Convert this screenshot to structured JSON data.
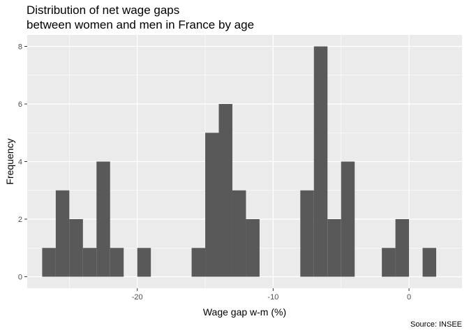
{
  "chart_data": {
    "type": "histogram",
    "title": [
      "Distribution of net wage gaps",
      "between women and men in France by age"
    ],
    "xlabel": "Wage gap w-m (%)",
    "ylabel": "Frequency",
    "caption": "Source: INSEE",
    "xlim": [
      -28.1,
      3.9
    ],
    "ylim": [
      -0.4,
      8.4
    ],
    "x_ticks": [
      -20,
      -10,
      0
    ],
    "y_ticks": [
      0,
      2,
      4,
      6,
      8
    ],
    "bin_width": 1,
    "bins": [
      {
        "x0": -27,
        "x1": -26,
        "count": 1
      },
      {
        "x0": -26,
        "x1": -25,
        "count": 3
      },
      {
        "x0": -25,
        "x1": -24,
        "count": 2
      },
      {
        "x0": -24,
        "x1": -23,
        "count": 1
      },
      {
        "x0": -23,
        "x1": -22,
        "count": 4
      },
      {
        "x0": -22,
        "x1": -21,
        "count": 1
      },
      {
        "x0": -20,
        "x1": -19,
        "count": 1
      },
      {
        "x0": -16,
        "x1": -15,
        "count": 1
      },
      {
        "x0": -15,
        "x1": -14,
        "count": 5
      },
      {
        "x0": -14,
        "x1": -13,
        "count": 6
      },
      {
        "x0": -13,
        "x1": -12,
        "count": 3
      },
      {
        "x0": -12,
        "x1": -11,
        "count": 2
      },
      {
        "x0": -8,
        "x1": -7,
        "count": 3
      },
      {
        "x0": -7,
        "x1": -6,
        "count": 8
      },
      {
        "x0": -6,
        "x1": -5,
        "count": 2
      },
      {
        "x0": -5,
        "x1": -4,
        "count": 4
      },
      {
        "x0": -2,
        "x1": -1,
        "count": 1
      },
      {
        "x0": -1,
        "x1": 0,
        "count": 2
      },
      {
        "x0": 1,
        "x1": 2,
        "count": 1
      }
    ],
    "bar_color": "#595959",
    "panel_background": "#ebebeb",
    "grid": true
  }
}
